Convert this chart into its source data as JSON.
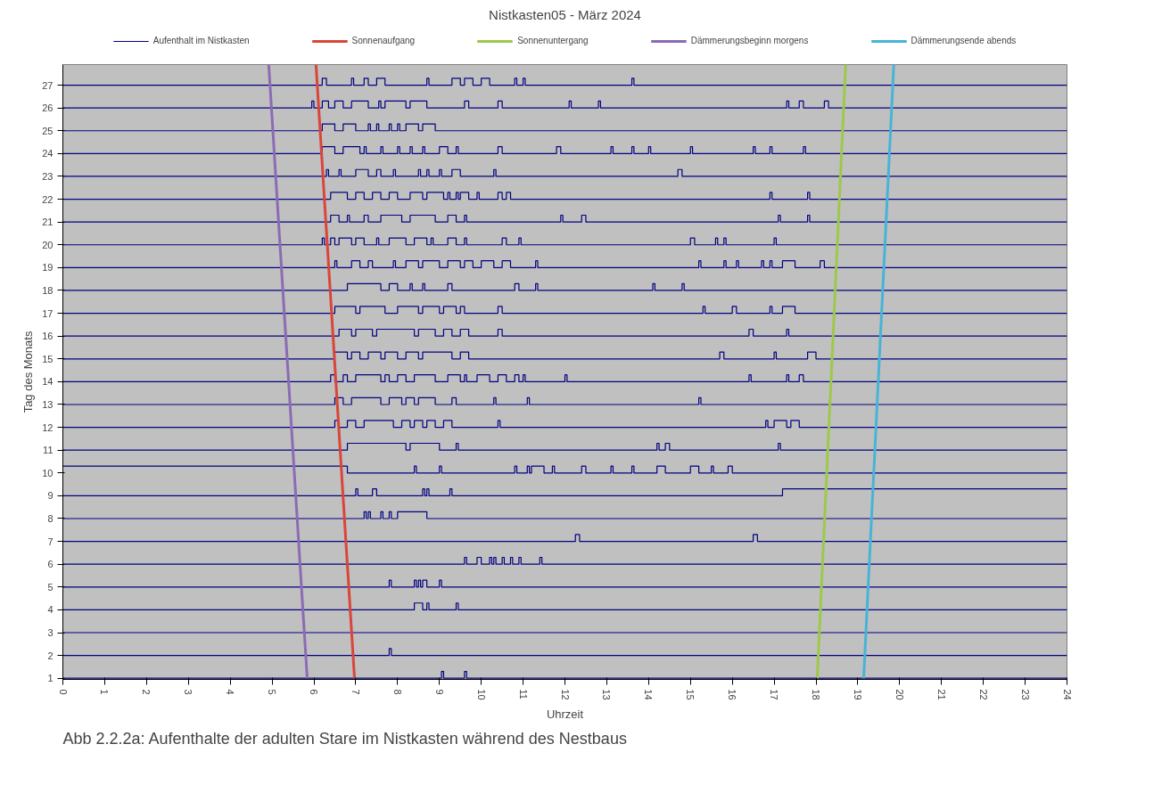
{
  "chart_data": {
    "type": "step",
    "title": "Nistkasten05 - März 2024",
    "xlabel": "Uhrzeit",
    "ylabel": "Tag des Monats",
    "xlim": [
      0,
      24
    ],
    "xticks": [
      0,
      1,
      2,
      3,
      4,
      5,
      6,
      7,
      8,
      9,
      10,
      11,
      12,
      13,
      14,
      15,
      16,
      17,
      18,
      19,
      20,
      21,
      22,
      23,
      24
    ],
    "ylim": [
      0.95,
      27.9
    ],
    "yticks": [
      1,
      2,
      3,
      4,
      5,
      6,
      7,
      8,
      9,
      10,
      11,
      12,
      13,
      14,
      15,
      16,
      17,
      18,
      19,
      20,
      21,
      22,
      23,
      24,
      25,
      26,
      27
    ],
    "legend": "top",
    "annotations": [
      "Abb 2.2.2a: Aufenthalte der adulten Stare im Nistkasten während des Nestbaus"
    ],
    "series": [
      {
        "name": "Aufenthalt im Nistkasten",
        "color": "#000080",
        "x": [
          0,
          9.05,
          9.1,
          9.6,
          9.65,
          24
        ],
        "values": [
          1,
          1.3,
          1,
          1.3,
          1,
          1
        ]
      },
      {
        "color": "#000080",
        "x": [
          0,
          7.8,
          7.85,
          24
        ],
        "values": [
          2,
          2.3,
          2,
          2
        ]
      },
      {
        "color": "#000080",
        "x": [
          0,
          24
        ],
        "values": [
          3,
          3
        ]
      },
      {
        "color": "#000080",
        "x": [
          0,
          8.4,
          8.6,
          8.7,
          8.75,
          9.4,
          9.45,
          24
        ],
        "values": [
          4,
          4.3,
          4,
          4.3,
          4,
          4.3,
          4,
          4
        ]
      },
      {
        "color": "#000080",
        "x": [
          0,
          7.8,
          7.85,
          8.4,
          8.45,
          8.5,
          8.55,
          8.6,
          8.7,
          9.0,
          9.05,
          24
        ],
        "values": [
          5,
          5.3,
          5,
          5.3,
          5,
          5.3,
          5,
          5.3,
          5,
          5.3,
          5,
          5
        ]
      },
      {
        "color": "#000080",
        "x": [
          0,
          9.6,
          9.65,
          9.9,
          10.0,
          10.2,
          10.25,
          10.3,
          10.35,
          10.5,
          10.55,
          10.7,
          10.75,
          10.9,
          10.95,
          11.4,
          11.45,
          24
        ],
        "values": [
          6,
          6.3,
          6,
          6.3,
          6,
          6.3,
          6,
          6.3,
          6,
          6.3,
          6,
          6.3,
          6,
          6.3,
          6,
          6.3,
          6,
          6
        ]
      },
      {
        "color": "#000080",
        "x": [
          0,
          12.25,
          12.35,
          16.5,
          16.6,
          24
        ],
        "values": [
          7,
          7.3,
          7,
          7.3,
          7,
          7
        ]
      },
      {
        "color": "#000080",
        "x": [
          0,
          7.2,
          7.25,
          7.3,
          7.35,
          7.6,
          7.65,
          7.8,
          7.85,
          8.0,
          8.7,
          24
        ],
        "values": [
          8,
          8.3,
          8,
          8.3,
          8,
          8.3,
          8,
          8.3,
          8,
          8.3,
          8,
          8
        ]
      },
      {
        "color": "#000080",
        "x": [
          0,
          7.0,
          7.05,
          7.4,
          7.5,
          8.6,
          8.65,
          8.7,
          8.75,
          9.25,
          9.3,
          17.2,
          24
        ],
        "values": [
          9,
          9.3,
          9,
          9.3,
          9,
          9.3,
          9,
          9.3,
          9,
          9.3,
          9,
          9.3,
          9.3
        ]
      },
      {
        "color": "#000080",
        "x": [
          0,
          6.8,
          8.4,
          8.45,
          9.0,
          9.05,
          10.8,
          10.85,
          11.1,
          11.15,
          11.2,
          11.5,
          11.7,
          11.75,
          12.4,
          12.5,
          13.1,
          13.15,
          13.6,
          13.65,
          14.2,
          14.4,
          15.0,
          15.2,
          15.5,
          15.55,
          15.9,
          16.0,
          24
        ],
        "values": [
          10.3,
          10,
          10.3,
          10,
          10.3,
          10,
          10.3,
          10,
          10.3,
          10,
          10.3,
          10,
          10.3,
          10,
          10.3,
          10,
          10.3,
          10,
          10.3,
          10,
          10.3,
          10,
          10.3,
          10,
          10.3,
          10,
          10.3,
          10,
          10
        ]
      },
      {
        "color": "#000080",
        "x": [
          0,
          6.8,
          8.2,
          8.3,
          9.0,
          9.4,
          9.45,
          14.2,
          14.25,
          14.4,
          14.5,
          17.1,
          17.15,
          24
        ],
        "values": [
          11,
          11.3,
          11,
          11.3,
          11,
          11.3,
          11,
          11.3,
          11,
          11.3,
          11,
          11.3,
          11,
          11
        ]
      },
      {
        "color": "#000080",
        "x": [
          0,
          6.5,
          6.6,
          6.8,
          7.0,
          7.2,
          7.9,
          8.1,
          8.3,
          8.4,
          8.6,
          8.7,
          8.9,
          9.1,
          9.3,
          10.4,
          10.45,
          16.8,
          16.85,
          17.0,
          17.3,
          17.4,
          17.6,
          24
        ],
        "values": [
          12,
          12.3,
          12,
          12.3,
          12,
          12.3,
          12,
          12.3,
          12,
          12.3,
          12,
          12.3,
          12,
          12.3,
          12,
          12.3,
          12,
          12.3,
          12,
          12.3,
          12,
          12.3,
          12,
          12
        ]
      },
      {
        "color": "#000080",
        "x": [
          0,
          6.5,
          6.7,
          6.9,
          7.6,
          7.8,
          8.1,
          8.2,
          8.4,
          8.5,
          8.9,
          9.3,
          9.4,
          10.3,
          10.35,
          11.1,
          11.15,
          15.2,
          15.25,
          24
        ],
        "values": [
          13,
          13.3,
          13,
          13.3,
          13,
          13.3,
          13,
          13.3,
          13,
          13.3,
          13,
          13.3,
          13,
          13.3,
          13,
          13.3,
          13,
          13.3,
          13,
          13
        ]
      },
      {
        "color": "#000080",
        "x": [
          0,
          6.4,
          6.5,
          6.7,
          6.8,
          7.0,
          7.6,
          7.7,
          7.8,
          8.0,
          8.2,
          8.4,
          8.9,
          9.2,
          9.5,
          9.6,
          9.65,
          9.9,
          10.2,
          10.4,
          10.6,
          10.8,
          10.9,
          11.0,
          11.05,
          12.0,
          12.05,
          16.4,
          16.45,
          17.3,
          17.35,
          17.6,
          17.7,
          24
        ],
        "values": [
          14,
          14.3,
          14,
          14.3,
          14,
          14.3,
          14,
          14.3,
          14,
          14.3,
          14,
          14.3,
          14,
          14.3,
          14,
          14.3,
          14,
          14.3,
          14,
          14.3,
          14,
          14.3,
          14,
          14.3,
          14,
          14.3,
          14,
          14.3,
          14,
          14.3,
          14,
          14.3,
          14,
          14
        ]
      },
      {
        "color": "#000080",
        "x": [
          0,
          6.5,
          6.8,
          6.9,
          7.1,
          7.3,
          7.6,
          7.7,
          8.0,
          8.2,
          8.5,
          8.6,
          9.3,
          9.5,
          9.7,
          15.7,
          15.8,
          17.0,
          17.05,
          17.8,
          18.0,
          24
        ],
        "values": [
          15,
          15.3,
          15,
          15.3,
          15,
          15.3,
          15,
          15.3,
          15,
          15.3,
          15,
          15.3,
          15,
          15.3,
          15,
          15.3,
          15,
          15.3,
          15,
          15.3,
          15,
          15
        ]
      },
      {
        "color": "#000080",
        "x": [
          0,
          6.6,
          6.9,
          7.0,
          7.4,
          7.5,
          8.4,
          8.5,
          8.9,
          9.1,
          9.3,
          9.5,
          9.7,
          10.4,
          10.5,
          16.4,
          16.5,
          17.3,
          17.35,
          24
        ],
        "values": [
          16,
          16.3,
          16,
          16.3,
          16,
          16.3,
          16,
          16.3,
          16,
          16.3,
          16,
          16.3,
          16,
          16.3,
          16,
          16.3,
          16,
          16.3,
          16,
          16
        ]
      },
      {
        "color": "#000080",
        "x": [
          0,
          6.5,
          7.0,
          7.1,
          7.7,
          8.0,
          8.5,
          8.6,
          9.0,
          9.1,
          9.4,
          9.5,
          9.6,
          10.4,
          10.5,
          15.3,
          15.35,
          16.0,
          16.1,
          16.9,
          16.95,
          17.2,
          17.5,
          24
        ],
        "values": [
          17,
          17.3,
          17,
          17.3,
          17,
          17.3,
          17,
          17.3,
          17,
          17.3,
          17,
          17.3,
          17,
          17.3,
          17,
          17.3,
          17,
          17.3,
          17,
          17.3,
          17,
          17.3,
          17,
          17
        ]
      },
      {
        "color": "#000080",
        "x": [
          0,
          6.8,
          7.6,
          7.8,
          8.0,
          8.3,
          8.35,
          8.6,
          8.65,
          9.2,
          9.3,
          10.8,
          10.9,
          11.3,
          11.35,
          14.1,
          14.15,
          14.8,
          14.85,
          24
        ],
        "values": [
          18,
          18.3,
          18,
          18.3,
          18,
          18.3,
          18,
          18.3,
          18,
          18.3,
          18,
          18.3,
          18,
          18.3,
          18,
          18.3,
          18,
          18.3,
          18,
          18
        ]
      },
      {
        "color": "#000080",
        "x": [
          0,
          6.5,
          6.55,
          6.9,
          7.1,
          7.3,
          7.4,
          7.9,
          7.95,
          8.2,
          8.5,
          8.6,
          9.0,
          9.2,
          9.5,
          9.6,
          9.8,
          10.0,
          10.3,
          10.5,
          10.7,
          11.3,
          11.35,
          15.2,
          15.25,
          15.8,
          15.85,
          16.1,
          16.15,
          16.7,
          16.75,
          16.9,
          16.95,
          17.2,
          17.5,
          18.1,
          18.2,
          24
        ],
        "values": [
          19,
          19.3,
          19,
          19.3,
          19,
          19.3,
          19,
          19.3,
          19,
          19.3,
          19,
          19.3,
          19,
          19.3,
          19,
          19.3,
          19,
          19.3,
          19,
          19.3,
          19,
          19.3,
          19,
          19.3,
          19,
          19.3,
          19,
          19.3,
          19,
          19.3,
          19,
          19.3,
          19,
          19.3,
          19,
          19.3,
          19,
          19
        ]
      },
      {
        "color": "#000080",
        "x": [
          0,
          6.2,
          6.25,
          6.4,
          6.5,
          6.6,
          6.9,
          7.0,
          7.2,
          7.5,
          7.55,
          7.8,
          8.2,
          8.4,
          8.7,
          8.8,
          8.85,
          9.2,
          9.4,
          9.6,
          9.65,
          10.5,
          10.6,
          10.9,
          10.95,
          15.0,
          15.1,
          15.6,
          15.65,
          15.8,
          15.85,
          17.0,
          17.05,
          24
        ],
        "values": [
          20,
          20.3,
          20,
          20.3,
          20,
          20.3,
          20,
          20.3,
          20,
          20.3,
          20,
          20.3,
          20,
          20.3,
          20,
          20.3,
          20,
          20.3,
          20,
          20.3,
          20,
          20.3,
          20,
          20.3,
          20,
          20.3,
          20,
          20.3,
          20,
          20.3,
          20,
          20.3,
          20,
          20
        ]
      },
      {
        "color": "#000080",
        "x": [
          0,
          6.4,
          6.6,
          6.8,
          6.85,
          7.2,
          7.3,
          7.6,
          8.1,
          8.3,
          8.9,
          9.2,
          9.4,
          9.6,
          9.65,
          11.9,
          11.95,
          12.4,
          12.5,
          17.1,
          17.15,
          17.8,
          17.85,
          24
        ],
        "values": [
          21,
          21.3,
          21,
          21.3,
          21,
          21.3,
          21,
          21.3,
          21,
          21.3,
          21,
          21.3,
          21,
          21.3,
          21,
          21.3,
          21,
          21.3,
          21,
          21.3,
          21,
          21.3,
          21,
          21
        ]
      },
      {
        "color": "#000080",
        "x": [
          0,
          6.4,
          6.8,
          7.0,
          7.2,
          7.4,
          7.6,
          7.8,
          8.0,
          8.3,
          8.6,
          8.7,
          9.1,
          9.2,
          9.25,
          9.4,
          9.45,
          9.5,
          9.7,
          9.9,
          9.95,
          10.4,
          10.5,
          10.6,
          10.7,
          16.9,
          16.95,
          17.8,
          17.85,
          24
        ],
        "values": [
          22,
          22.3,
          22,
          22.3,
          22,
          22.3,
          22,
          22.3,
          22,
          22.3,
          22,
          22.3,
          22,
          22.3,
          22,
          22.3,
          22,
          22.3,
          22,
          22.3,
          22,
          22.3,
          22,
          22.3,
          22,
          22.3,
          22,
          22.3,
          22,
          22
        ]
      },
      {
        "color": "#000080",
        "x": [
          0,
          6.3,
          6.35,
          6.6,
          6.65,
          7.0,
          7.3,
          7.5,
          7.6,
          7.9,
          7.95,
          8.5,
          8.55,
          8.7,
          8.75,
          9.0,
          9.05,
          9.3,
          9.5,
          10.3,
          10.35,
          14.7,
          14.8,
          24
        ],
        "values": [
          23,
          23.3,
          23,
          23.3,
          23,
          23.3,
          23,
          23.3,
          23,
          23.3,
          23,
          23.3,
          23,
          23.3,
          23,
          23.3,
          23,
          23.3,
          23,
          23.3,
          23,
          23.3,
          23,
          23
        ]
      },
      {
        "color": "#000080",
        "x": [
          0,
          6.2,
          6.5,
          6.7,
          7.1,
          7.2,
          7.25,
          7.6,
          7.65,
          8.0,
          8.05,
          8.3,
          8.35,
          8.6,
          8.65,
          9.0,
          9.2,
          9.4,
          9.45,
          10.4,
          10.5,
          11.8,
          11.9,
          13.1,
          13.15,
          13.6,
          13.65,
          14.0,
          14.05,
          15.0,
          15.05,
          16.5,
          16.55,
          16.9,
          16.95,
          17.7,
          17.75,
          24
        ],
        "values": [
          24,
          24.3,
          24,
          24.3,
          24,
          24.3,
          24,
          24.3,
          24,
          24.3,
          24,
          24.3,
          24,
          24.3,
          24,
          24.3,
          24,
          24.3,
          24,
          24.3,
          24,
          24.3,
          24,
          24.3,
          24,
          24.3,
          24,
          24.3,
          24,
          24.3,
          24,
          24.3,
          24,
          24.3,
          24,
          24.3,
          24,
          24
        ]
      },
      {
        "color": "#000080",
        "x": [
          0,
          6.2,
          6.5,
          6.7,
          7.0,
          7.3,
          7.35,
          7.5,
          7.55,
          7.8,
          7.85,
          8.0,
          8.05,
          8.2,
          8.5,
          8.6,
          8.9,
          24
        ],
        "values": [
          25,
          25.3,
          25,
          25.3,
          25,
          25.3,
          25,
          25.3,
          25,
          25.3,
          25,
          25.3,
          25,
          25.3,
          25,
          25.3,
          25,
          25
        ]
      },
      {
        "color": "#000080",
        "x": [
          0,
          5.95,
          6.0,
          6.2,
          6.35,
          6.5,
          6.7,
          6.9,
          7.3,
          7.55,
          7.6,
          7.7,
          8.2,
          8.3,
          8.7,
          9.6,
          9.7,
          10.4,
          10.5,
          12.1,
          12.15,
          12.8,
          12.85,
          17.3,
          17.35,
          17.6,
          17.7,
          18.2,
          18.3,
          24
        ],
        "values": [
          26,
          26.3,
          26,
          26.3,
          26,
          26.3,
          26,
          26.3,
          26,
          26.3,
          26,
          26.3,
          26,
          26.3,
          26,
          26.3,
          26,
          26.3,
          26,
          26.3,
          26,
          26.3,
          26,
          26.3,
          26,
          26.3,
          26,
          26.3,
          26,
          26
        ]
      },
      {
        "color": "#000080",
        "x": [
          0,
          6.2,
          6.3,
          6.9,
          6.95,
          7.2,
          7.3,
          7.5,
          7.7,
          8.7,
          8.75,
          9.3,
          9.5,
          9.6,
          9.8,
          10.0,
          10.2,
          10.8,
          10.85,
          11.0,
          11.05,
          13.6,
          13.65,
          24
        ],
        "values": [
          27,
          27.3,
          27,
          27.3,
          27,
          27.3,
          27,
          27.3,
          27,
          27.3,
          27,
          27.3,
          27,
          27.3,
          27,
          27.3,
          27,
          27.3,
          27,
          27.3,
          27,
          27.3,
          27,
          27
        ]
      },
      {
        "name": "Sonnenaufgang",
        "type": "line",
        "color": "#d9453a",
        "x": [
          6.97,
          6.05
        ],
        "values": [
          1,
          27.9
        ]
      },
      {
        "name": "Sonnenuntergang",
        "type": "line",
        "color": "#9dc84a",
        "x": [
          18.03,
          18.71
        ],
        "values": [
          1,
          27.9
        ]
      },
      {
        "name": "Dämmerungsbeginn morgens",
        "type": "line",
        "color": "#8a6bb5",
        "x": [
          5.84,
          4.92
        ],
        "values": [
          1,
          27.9
        ]
      },
      {
        "name": "Dämmerungsende abends",
        "type": "line",
        "color": "#46b4d6",
        "x": [
          19.14,
          19.86
        ],
        "values": [
          1,
          27.9
        ]
      }
    ]
  }
}
